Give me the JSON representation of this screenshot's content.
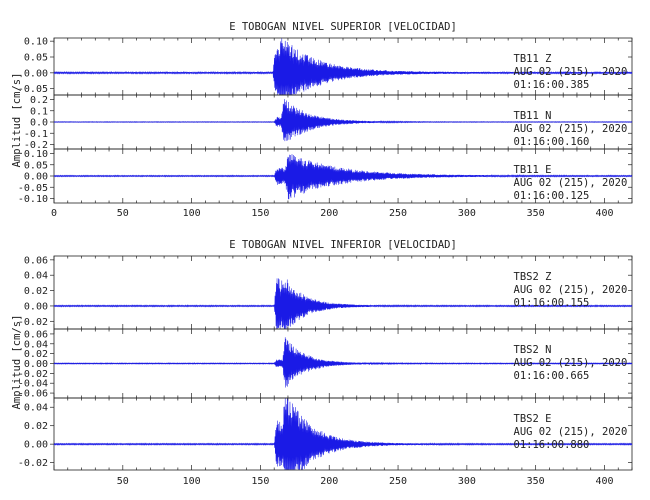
{
  "chart_data": {
    "type": "line",
    "panels": [
      {
        "title": "E TOBOGAN NIVEL SUPERIOR [VELOCIDAD]",
        "ylabel": "Amplitud [cm/s]",
        "xlim": [
          0,
          420
        ],
        "xticks": [
          0,
          50,
          100,
          150,
          200,
          250,
          300,
          350,
          400
        ],
        "x_tick_labels_shown": true,
        "traces": [
          {
            "station": "TB11",
            "component": "Z",
            "date": "AUG 02 (215), 2020",
            "time": "01:16:00.385",
            "ylim": [
              -0.07,
              0.11
            ],
            "yticks": [
              -0.05,
              0.0,
              0.05,
              0.1
            ],
            "ytick_labels": [
              "-0.05",
              "0.00",
              "0.05",
              "0.10"
            ],
            "onsets": [
              159,
              163
            ],
            "peaks": [
              0.09,
              0.05
            ],
            "noise": 0.0025,
            "decay": 25
          },
          {
            "station": "TB11",
            "component": "N",
            "date": "AUG 02 (215), 2020",
            "time": "01:16:00.160",
            "ylim": [
              -0.24,
              0.24
            ],
            "yticks": [
              -0.2,
              -0.1,
              0.0,
              0.1,
              0.2
            ],
            "ytick_labels": [
              "-0.2",
              "-0.1",
              "0.0",
              "0.1",
              "0.2"
            ],
            "onsets": [
              160,
              165
            ],
            "peaks": [
              0.05,
              0.2
            ],
            "noise": 0.003,
            "decay": 18
          },
          {
            "station": "TB11",
            "component": "E",
            "date": "AUG 02 (215), 2020",
            "time": "01:16:00.125",
            "ylim": [
              -0.12,
              0.12
            ],
            "yticks": [
              -0.1,
              -0.05,
              0.0,
              0.05,
              0.1
            ],
            "ytick_labels": [
              "-0.10",
              "-0.05",
              "0.00",
              "0.05",
              "0.10"
            ],
            "onsets": [
              160,
              168
            ],
            "peaks": [
              0.04,
              0.08
            ],
            "noise": 0.0025,
            "decay": 35
          }
        ]
      },
      {
        "title": "E TOBOGAN NIVEL INFERIOR [VELOCIDAD]",
        "ylabel": "Amplitud [cm/s]",
        "xlim": [
          0,
          420
        ],
        "xticks": [
          50,
          100,
          150,
          200,
          250,
          300,
          350,
          400
        ],
        "x_tick_labels_shown": true,
        "traces": [
          {
            "station": "TBS2",
            "component": "Z",
            "date": "AUG 02 (215), 2020",
            "time": "01:16:00.155",
            "ylim": [
              -0.03,
              0.065
            ],
            "yticks": [
              -0.02,
              0.0,
              0.02,
              0.04,
              0.06
            ],
            "ytick_labels": [
              "-0.02",
              "0.00",
              "0.02",
              "0.04",
              "0.06"
            ],
            "onsets": [
              160,
              165
            ],
            "peaks": [
              0.045,
              0.015
            ],
            "noise": 0.0008,
            "decay": 14
          },
          {
            "station": "TBS2",
            "component": "N",
            "date": "AUG 02 (215), 2020",
            "time": "01:16:00.665",
            "ylim": [
              -0.07,
              0.07
            ],
            "yticks": [
              -0.06,
              -0.04,
              -0.02,
              0.0,
              0.02,
              0.04,
              0.06
            ],
            "ytick_labels": [
              "-0.06",
              "-0.04",
              "-0.02",
              "0.00",
              "0.02",
              "0.04",
              "0.06"
            ],
            "onsets": [
              160,
              166
            ],
            "peaks": [
              0.01,
              0.055
            ],
            "noise": 0.001,
            "decay": 14
          },
          {
            "station": "TBS2",
            "component": "E",
            "date": "AUG 02 (215), 2020",
            "time": "01:16:00.880",
            "ylim": [
              -0.028,
              0.05
            ],
            "yticks": [
              -0.02,
              0.0,
              0.02,
              0.04
            ],
            "ytick_labels": [
              "-0.02",
              "0.00",
              "0.02",
              "0.04"
            ],
            "onsets": [
              160,
              166
            ],
            "peaks": [
              0.03,
              0.045
            ],
            "noise": 0.0007,
            "decay": 18
          }
        ]
      }
    ],
    "colors": {
      "trace": "#1a1ae6",
      "axes": "#222222"
    },
    "grid": false
  }
}
